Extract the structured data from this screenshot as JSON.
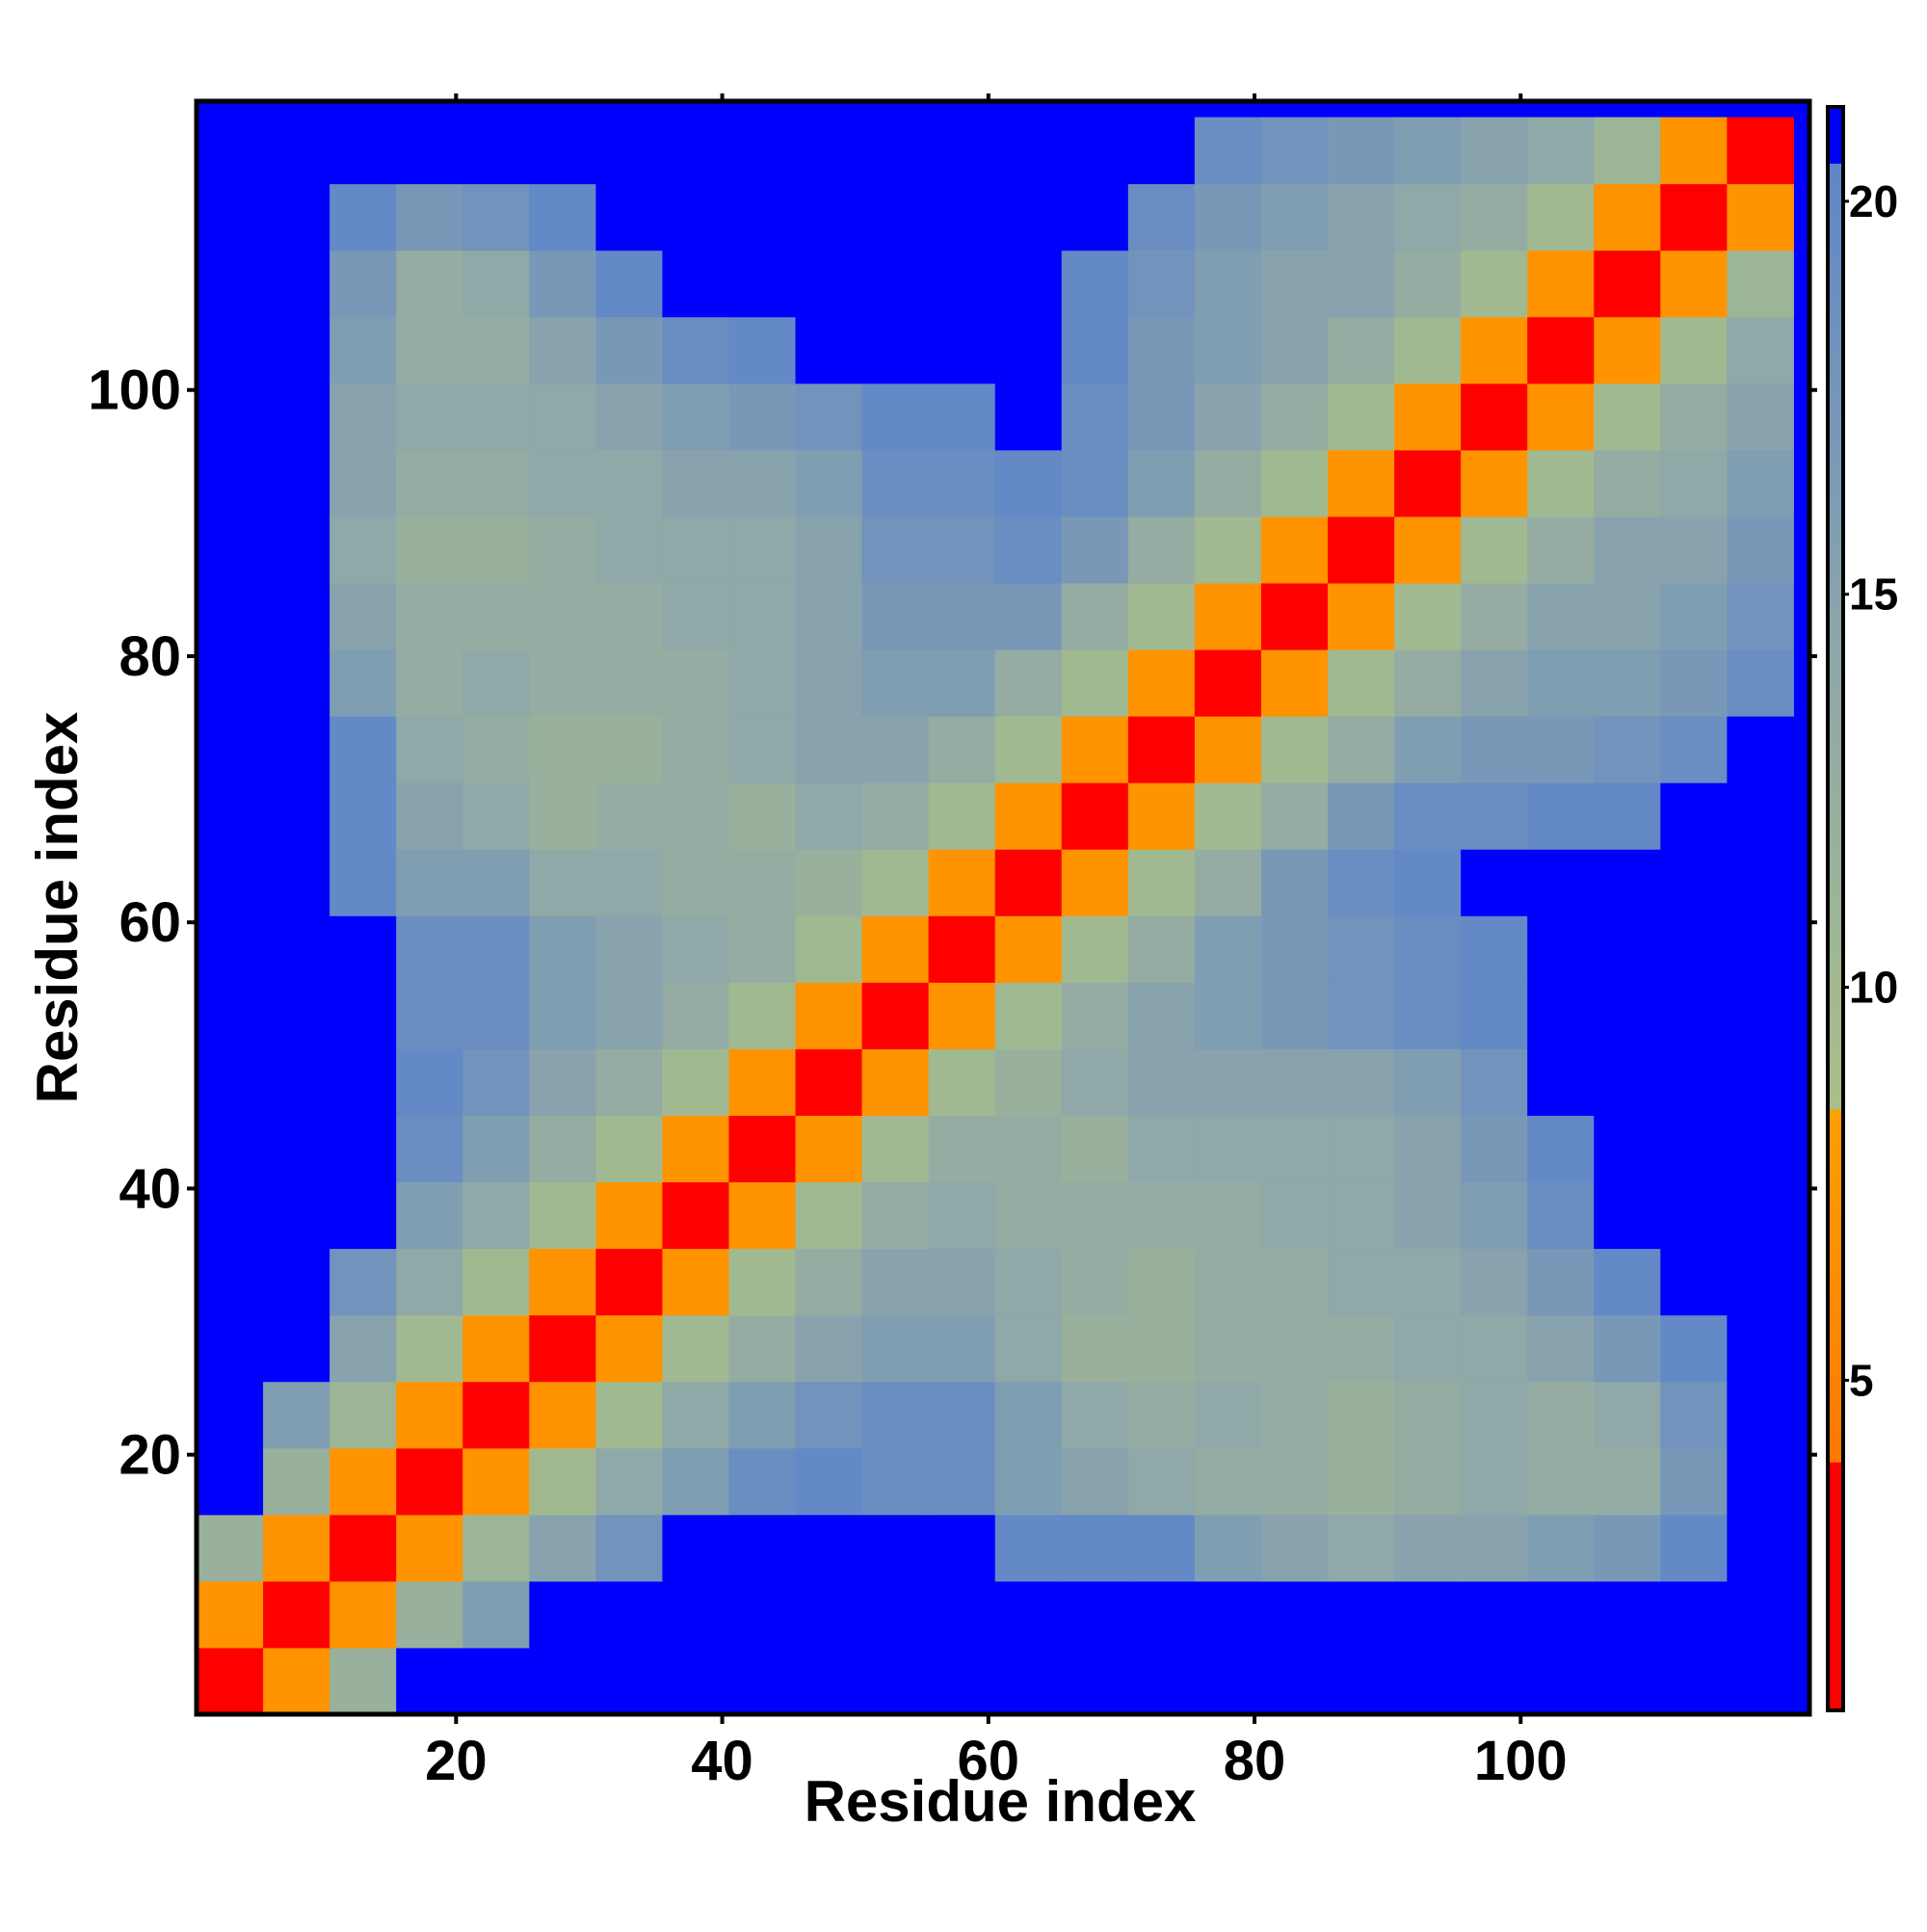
{
  "chart_data": {
    "type": "heatmap",
    "xlabel": "Residue index",
    "ylabel": "Residue index",
    "xbins": [
      0.5,
      5.5,
      10.5,
      15.5,
      20.5,
      25.5,
      30.5,
      35.5,
      40.5,
      45.5,
      50.5,
      55.5,
      60.5,
      65.5,
      70.5,
      75.5,
      80.5,
      85.5,
      90.5,
      95.5,
      100.5,
      105.5,
      110.5,
      115.5,
      120.5
    ],
    "ybins": [
      0.5,
      5.5,
      10.5,
      15.5,
      20.5,
      25.5,
      30.5,
      35.5,
      40.5,
      45.5,
      50.5,
      55.5,
      60.5,
      65.5,
      70.5,
      75.5,
      80.5,
      85.5,
      90.5,
      95.5,
      100.5,
      105.5,
      110.5,
      115.5,
      120.5
    ],
    "xlim": [
      0.5,
      121.7
    ],
    "ylim": [
      0.5,
      121.7
    ],
    "xticks": [
      20,
      40,
      60,
      80,
      100
    ],
    "yticks": [
      20,
      40,
      60,
      80,
      100
    ],
    "clim": [
      0.8,
      21.2
    ],
    "cticks": [
      5,
      10,
      15,
      20
    ],
    "colorscale": [
      [
        0.8,
        "#ff0000"
      ],
      [
        4,
        "#ff0000"
      ],
      [
        4,
        "#ff7800"
      ],
      [
        8.5,
        "#ffa000"
      ],
      [
        8.5,
        "#a8bf88"
      ],
      [
        14,
        "#8fa8a8"
      ],
      [
        20.5,
        "#5f86c8"
      ],
      [
        20.5,
        "#0000ff"
      ],
      [
        21.2,
        "#0000ff"
      ]
    ],
    "over_color": "#0000ff",
    "z": [
      [
        2,
        7,
        12,
        22,
        22,
        22,
        22,
        22,
        22,
        22,
        22,
        22,
        22,
        22,
        22,
        22,
        22,
        22,
        22,
        22,
        22,
        22,
        22,
        22
      ],
      [
        7,
        2,
        7,
        12,
        16,
        22,
        22,
        22,
        22,
        22,
        22,
        22,
        22,
        22,
        22,
        22,
        22,
        22,
        22,
        22,
        22,
        22,
        22,
        22
      ],
      [
        12,
        7,
        2,
        7,
        11,
        15,
        18,
        22,
        22,
        22,
        22,
        22,
        20,
        20,
        20,
        16,
        15,
        14,
        15,
        15,
        16,
        17,
        20,
        22
      ],
      [
        22,
        12,
        7,
        2,
        7,
        10,
        14,
        16,
        19,
        20,
        19,
        19,
        16,
        15,
        14,
        13,
        13,
        12,
        13,
        14,
        13,
        13,
        17,
        22
      ],
      [
        22,
        16,
        11,
        7,
        2,
        7,
        10,
        14,
        16,
        18,
        19,
        19,
        16,
        14,
        13,
        14,
        13,
        12,
        13,
        14,
        13,
        14,
        18,
        22
      ],
      [
        22,
        22,
        15,
        10,
        7,
        2,
        7,
        10,
        13,
        15,
        16,
        16,
        14,
        12,
        12,
        13,
        13,
        13,
        14,
        14,
        15,
        17,
        20,
        22
      ],
      [
        22,
        22,
        18,
        14,
        10,
        7,
        2,
        7,
        10,
        13,
        15,
        15,
        14,
        13,
        12,
        13,
        13,
        14,
        14,
        15,
        17,
        20,
        22,
        22
      ],
      [
        22,
        22,
        22,
        16,
        14,
        10,
        7,
        2,
        7,
        10,
        13,
        14,
        13,
        13,
        13,
        13,
        14,
        14,
        15,
        16,
        19,
        21,
        22,
        22
      ],
      [
        22,
        22,
        22,
        19,
        16,
        13,
        10,
        7,
        2,
        7,
        10,
        13,
        13,
        12,
        14,
        14,
        14,
        14,
        15,
        17,
        20,
        22,
        22,
        22
      ],
      [
        22,
        22,
        22,
        20,
        18,
        15,
        13,
        10,
        7,
        2,
        7,
        10,
        12,
        14,
        15,
        15,
        15,
        15,
        16,
        18,
        21,
        22,
        22,
        22
      ],
      [
        22,
        22,
        22,
        19,
        19,
        16,
        15,
        13,
        10,
        7,
        2,
        7,
        10,
        13,
        15,
        16,
        17,
        18,
        19,
        20,
        22,
        22,
        22,
        22
      ],
      [
        22,
        22,
        22,
        19,
        19,
        16,
        15,
        14,
        13,
        10,
        7,
        2,
        7,
        10,
        13,
        16,
        17,
        18,
        19,
        20,
        21,
        22,
        22,
        22
      ],
      [
        22,
        22,
        20,
        16,
        16,
        14,
        14,
        13,
        13,
        12,
        10,
        7,
        2,
        7,
        10,
        13,
        17,
        19,
        20,
        21,
        22,
        22,
        22,
        22
      ],
      [
        22,
        22,
        20,
        15,
        14,
        12,
        13,
        13,
        12,
        14,
        13,
        10,
        7,
        2,
        7,
        10,
        13,
        17,
        19,
        19,
        20,
        20,
        21,
        22
      ],
      [
        22,
        22,
        20,
        14,
        13,
        12,
        12,
        13,
        14,
        15,
        15,
        13,
        10,
        7,
        2,
        7,
        10,
        13,
        16,
        17,
        17,
        18,
        19,
        21
      ],
      [
        22,
        22,
        16,
        13,
        14,
        13,
        13,
        13,
        14,
        15,
        16,
        16,
        13,
        10,
        7,
        2,
        7,
        10,
        13,
        15,
        16,
        16,
        17,
        19
      ],
      [
        22,
        22,
        15,
        13,
        13,
        13,
        13,
        14,
        14,
        15,
        17,
        17,
        17,
        13,
        10,
        7,
        2,
        7,
        10,
        13,
        15,
        15,
        16,
        18
      ],
      [
        22,
        22,
        14,
        12,
        12,
        13,
        14,
        14,
        14,
        15,
        18,
        18,
        19,
        17,
        13,
        10,
        7,
        2,
        7,
        10,
        13,
        15,
        15,
        17
      ],
      [
        22,
        22,
        15,
        13,
        13,
        14,
        14,
        15,
        15,
        16,
        19,
        19,
        20,
        19,
        16,
        13,
        10,
        7,
        2,
        7,
        10,
        13,
        14,
        16
      ],
      [
        22,
        22,
        15,
        14,
        14,
        14,
        15,
        16,
        17,
        18,
        20,
        20,
        21,
        19,
        17,
        15,
        13,
        10,
        7,
        2,
        7,
        10,
        13,
        15
      ],
      [
        22,
        22,
        16,
        13,
        13,
        15,
        17,
        19,
        20,
        21,
        22,
        21,
        22,
        20,
        17,
        16,
        15,
        13,
        10,
        7,
        2,
        7,
        10,
        14
      ],
      [
        22,
        22,
        17,
        13,
        14,
        17,
        20,
        21,
        22,
        22,
        22,
        22,
        22,
        20,
        18,
        16,
        15,
        15,
        13,
        10,
        7,
        2,
        7,
        11
      ],
      [
        22,
        22,
        20,
        17,
        18,
        20,
        22,
        22,
        22,
        22,
        22,
        22,
        22,
        21,
        19,
        17,
        16,
        15,
        14,
        13,
        10,
        7,
        2,
        7
      ],
      [
        22,
        22,
        22,
        22,
        22,
        22,
        22,
        22,
        22,
        22,
        22,
        22,
        22,
        22,
        21,
        19,
        18,
        17,
        16,
        15,
        14,
        11,
        7,
        2
      ]
    ]
  }
}
